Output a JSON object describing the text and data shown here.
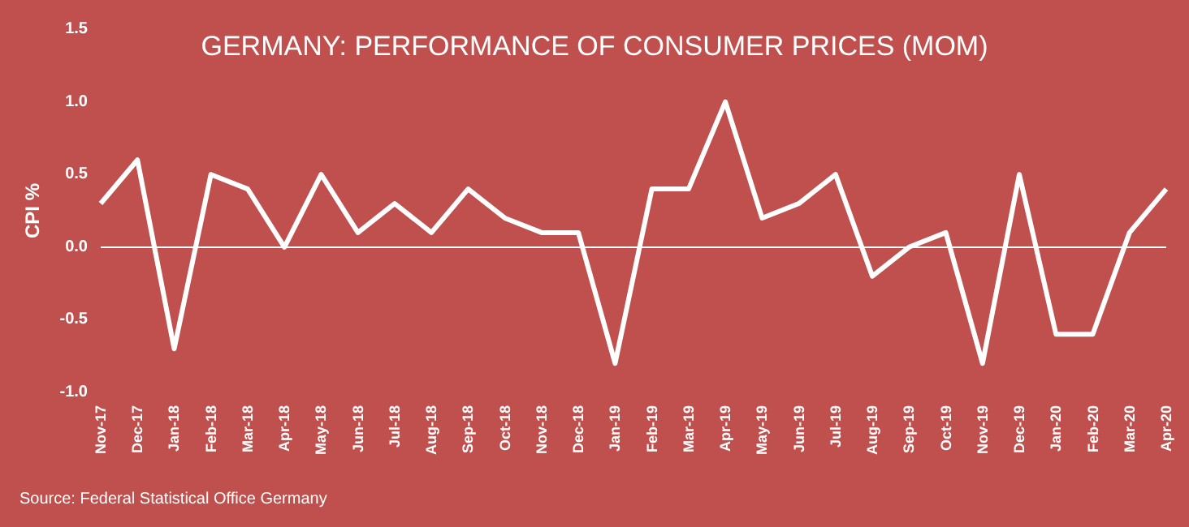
{
  "chart_data": {
    "type": "line",
    "title": "GERMANY: PERFORMANCE OF CONSUMER PRICES (MOM)",
    "ylabel": "CPI %",
    "categories": [
      "Nov-17",
      "Dec-17",
      "Jan-18",
      "Feb-18",
      "Mar-18",
      "Apr-18",
      "May-18",
      "Jun-18",
      "Jul-18",
      "Aug-18",
      "Sep-18",
      "Oct-18",
      "Nov-18",
      "Dec-18",
      "Jan-19",
      "Feb-19",
      "Mar-19",
      "Apr-19",
      "May-19",
      "Jun-19",
      "Jul-19",
      "Aug-19",
      "Sep-19",
      "Oct-19",
      "Nov-19",
      "Dec-19",
      "Jan-20",
      "Feb-20",
      "Mar-20",
      "Apr-20"
    ],
    "series": [
      {
        "color": "#ffffff",
        "values": [
          0.3,
          0.6,
          -0.7,
          0.5,
          0.4,
          0.0,
          0.5,
          0.1,
          0.3,
          0.1,
          0.4,
          0.2,
          0.1,
          0.1,
          -0.8,
          0.4,
          0.4,
          1.0,
          0.2,
          0.3,
          0.5,
          -0.2,
          0.0,
          0.1,
          -0.8,
          0.5,
          -0.6,
          -0.6,
          0.1,
          0.4
        ]
      }
    ],
    "ylim": [
      -1,
      1.5
    ],
    "yticks": [
      {
        "value": -1,
        "label": "-1.0"
      },
      {
        "value": -0.5,
        "label": "-0.5"
      },
      {
        "value": 0,
        "label": "0.0"
      },
      {
        "value": 0.5,
        "label": "0.5"
      },
      {
        "value": 1,
        "label": "1.0"
      },
      {
        "value": 1.5,
        "label": "1.5"
      }
    ],
    "grid": false,
    "marker": "none",
    "ref_lines": [
      {
        "axis": "y",
        "value": 0,
        "color": "#ffffff"
      }
    ],
    "line_style": "solid",
    "annotations": [
      "Source: Federal Statistical Office Germany"
    ]
  }
}
